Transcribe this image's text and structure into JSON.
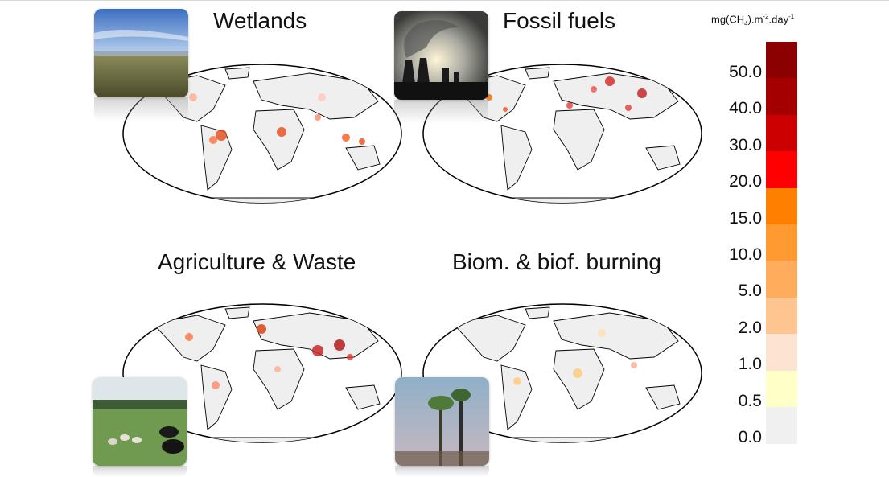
{
  "panels": [
    {
      "title": "Wetlands",
      "photo": "wetland-grass-photo"
    },
    {
      "title": "Fossil fuels",
      "photo": "power-plant-smoke-photo"
    },
    {
      "title": "Agriculture & Waste",
      "photo": "cattle-pasture-photo"
    },
    {
      "title": "Biom. & biof. burning",
      "photo": "forest-fire-photo"
    }
  ],
  "legend": {
    "unit_main": "mg(CH",
    "unit_sub": "4",
    "unit_mid": ").m",
    "unit_sup1": "-2",
    "unit_tail": ".day",
    "unit_sup2": "-1",
    "ticks": [
      "50.0",
      "40.0",
      "30.0",
      "20.0",
      "15.0",
      "10.0",
      "5.0",
      "2.0",
      "1.0",
      "0.5",
      "0.0"
    ],
    "colors": [
      "#8b0000",
      "#a50000",
      "#cc0000",
      "#ff0000",
      "#ff8000",
      "#ff9a33",
      "#ffad5c",
      "#ffc590",
      "#fde3d2",
      "#ffffc8",
      "#f0f0f0"
    ]
  }
}
